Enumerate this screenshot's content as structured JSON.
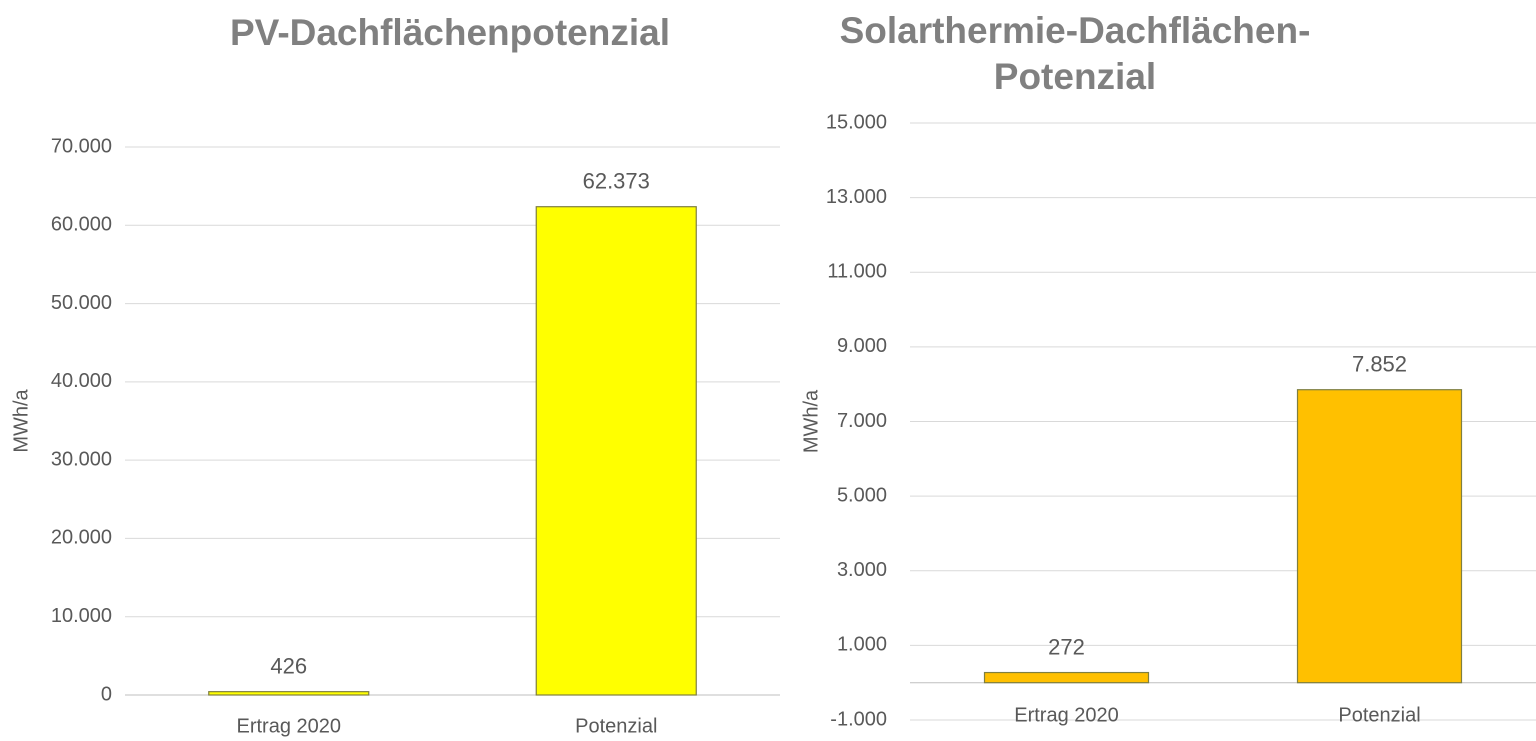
{
  "chart_data": [
    {
      "type": "bar",
      "title": "PV-Dachflächenpotenzial",
      "ylabel": "MWh/a",
      "categories": [
        "Ertrag 2020",
        "Potenzial"
      ],
      "values": [
        426,
        62373
      ],
      "value_labels": [
        "426",
        "62.373"
      ],
      "color": "#ffff00",
      "ylim": [
        0,
        70000
      ],
      "yticks": [
        0,
        {
          "value": 10000,
          "label": "10.000"
        },
        {
          "value": 20000,
          "label": "20.000"
        },
        {
          "value": 30000,
          "label": "30.000"
        },
        {
          "value": 40000,
          "label": "40.000"
        },
        {
          "value": 50000,
          "label": "50.000"
        },
        {
          "value": 60000,
          "label": "60.000"
        },
        {
          "value": 70000,
          "label": "70.000"
        }
      ],
      "grid": true
    },
    {
      "type": "bar",
      "title": "Solarthermie-Dachflächen-Potenzial",
      "ylabel": "MWh/a",
      "categories": [
        "Ertrag 2020",
        "Potenzial"
      ],
      "values": [
        272,
        7852
      ],
      "value_labels": [
        "272",
        "7.852"
      ],
      "color": "#ffc000",
      "ylim": [
        -1000,
        15000
      ],
      "yticks": [
        {
          "value": -1000,
          "label": "-1.000"
        },
        {
          "value": 1000,
          "label": "1.000"
        },
        {
          "value": 3000,
          "label": "3.000"
        },
        {
          "value": 5000,
          "label": "5.000"
        },
        {
          "value": 7000,
          "label": "7.000"
        },
        {
          "value": 9000,
          "label": "9.000"
        },
        {
          "value": 11000,
          "label": "11.000"
        },
        {
          "value": 13000,
          "label": "13.000"
        },
        {
          "value": 15000,
          "label": "15.000"
        }
      ],
      "grid": true
    }
  ]
}
